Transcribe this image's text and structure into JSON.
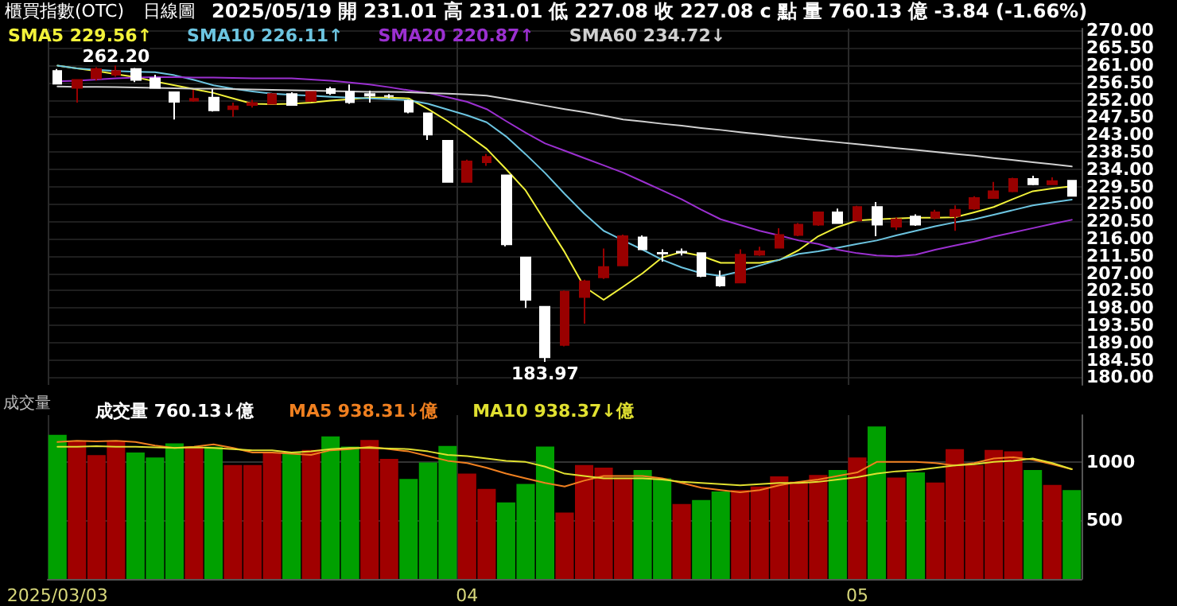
{
  "chart_data": [
    {
      "type": "candlestick",
      "title": "櫃買指數(OTC)",
      "subtitle": "日線圖",
      "annotations": [
        "2025/05/19",
        "開",
        "231.01",
        "高",
        "231.01",
        "低",
        "227.08",
        "收",
        "227.08",
        "c",
        "點",
        "量",
        "760.13",
        "億",
        "-3.84 (-1.66%)",
        {
          "text": "262.20",
          "y": 262.2
        },
        {
          "text": "183.97",
          "y": 183.97
        }
      ],
      "categories": [
        "2025/03/03",
        null,
        null,
        null,
        null,
        null,
        null,
        null,
        null,
        null,
        null,
        null,
        null,
        null,
        null,
        null,
        null,
        null,
        null,
        null,
        null,
        "04",
        null,
        null,
        null,
        null,
        null,
        null,
        null,
        null,
        null,
        null,
        null,
        null,
        null,
        null,
        null,
        null,
        null,
        null,
        null,
        "05",
        null,
        null,
        null,
        null,
        null,
        null,
        null,
        null,
        null,
        null,
        null
      ],
      "colors": [
        "#ffffff",
        "#990000",
        "#990000",
        "#990000",
        "#ffffff",
        "#ffffff",
        "#ffffff",
        "#990000",
        "#ffffff",
        "#990000",
        "#990000",
        "#990000",
        "#ffffff",
        "#990000",
        "#ffffff",
        "#ffffff",
        "#ffffff",
        "#ffffff",
        "#ffffff",
        "#ffffff",
        "#ffffff",
        "#990000",
        "#990000",
        "#ffffff",
        "#ffffff",
        "#ffffff",
        "#990000",
        "#990000",
        "#990000",
        "#990000",
        "#ffffff",
        "#ffffff",
        "#ffffff",
        "#ffffff",
        "#ffffff",
        "#990000",
        "#990000",
        "#990000",
        "#990000",
        "#990000",
        "#ffffff",
        "#990000",
        "#ffffff",
        "#990000",
        "#ffffff",
        "#990000",
        "#990000",
        "#990000",
        "#990000",
        "#990000",
        "#ffffff",
        "#990000",
        "#ffffff"
      ],
      "ohlc": [
        [
          259.5,
          260.0,
          256.0,
          256.2
        ],
        [
          255.1,
          257.4,
          251.3,
          257.2
        ],
        [
          257.6,
          260.5,
          257.0,
          260.0
        ],
        [
          258.5,
          262.2,
          258.0,
          259.5
        ],
        [
          260.0,
          260.3,
          256.6,
          257.2
        ],
        [
          257.6,
          258.5,
          255.0,
          255.1
        ],
        [
          254.0,
          254.2,
          246.9,
          251.5
        ],
        [
          251.8,
          254.6,
          251.5,
          252.3
        ],
        [
          252.6,
          254.8,
          249.0,
          249.3
        ],
        [
          249.6,
          251.3,
          247.6,
          250.3
        ],
        [
          250.7,
          252.0,
          250.0,
          251.2
        ],
        [
          251.0,
          253.8,
          250.8,
          253.5
        ],
        [
          253.5,
          254.0,
          250.5,
          250.7
        ],
        [
          251.7,
          254.1,
          251.7,
          254.1
        ],
        [
          254.8,
          255.4,
          253.3,
          253.8
        ],
        [
          254.1,
          256.0,
          251.0,
          251.4
        ],
        [
          253.5,
          254.4,
          251.3,
          253.1
        ],
        [
          253.0,
          253.5,
          252.5,
          253.0
        ],
        [
          251.7,
          252.0,
          248.5,
          248.9
        ],
        [
          248.5,
          248.7,
          241.6,
          243.0
        ],
        [
          241.4,
          241.5,
          230.5,
          230.7
        ],
        [
          230.7,
          236.5,
          230.5,
          236.0
        ],
        [
          235.8,
          238.0,
          234.9,
          237.2
        ],
        [
          232.4,
          232.5,
          214.0,
          214.5
        ],
        [
          211.1,
          211.2,
          198.0,
          200.1
        ],
        [
          198.3,
          198.5,
          183.97,
          185.2
        ],
        [
          188.4,
          202.5,
          188.0,
          202.2
        ],
        [
          200.8,
          205.3,
          193.9,
          204.9
        ],
        [
          205.9,
          213.4,
          205.5,
          208.6
        ],
        [
          209.0,
          217.0,
          208.8,
          216.6
        ],
        [
          216.3,
          216.8,
          213.0,
          213.2
        ],
        [
          212.3,
          213.2,
          210.0,
          212.1
        ],
        [
          212.6,
          213.4,
          211.6,
          212.4
        ],
        [
          212.2,
          212.4,
          206.0,
          206.3
        ],
        [
          206.0,
          207.7,
          203.5,
          203.8
        ],
        [
          204.6,
          213.2,
          204.4,
          211.8
        ],
        [
          211.8,
          213.9,
          211.5,
          212.7
        ],
        [
          213.6,
          218.7,
          213.4,
          216.9
        ],
        [
          216.9,
          220.0,
          216.6,
          219.6
        ],
        [
          219.6,
          223.0,
          219.3,
          222.8
        ],
        [
          222.8,
          223.8,
          219.8,
          220.0
        ],
        [
          220.7,
          224.5,
          220.5,
          224.2
        ],
        [
          224.2,
          225.5,
          216.6,
          219.6
        ],
        [
          219.1,
          221.5,
          218.2,
          221.0
        ],
        [
          221.7,
          222.3,
          219.3,
          219.6
        ],
        [
          221.4,
          223.5,
          221.0,
          222.8
        ],
        [
          221.8,
          224.6,
          218.0,
          223.5
        ],
        [
          223.8,
          227.0,
          223.5,
          226.5
        ],
        [
          226.5,
          230.7,
          226.3,
          228.3
        ],
        [
          228.3,
          231.8,
          228.0,
          231.5
        ],
        [
          231.5,
          232.3,
          229.8,
          230.1
        ],
        [
          230.1,
          231.9,
          229.9,
          230.92
        ],
        [
          231.01,
          231.01,
          227.08,
          227.08
        ]
      ],
      "series": [
        {
          "type": "line",
          "name": "SMA5 229.56↑",
          "color": "#f2f23a",
          "values": [
            260.9,
            260.2,
            259.5,
            258.7,
            257.9,
            256.8,
            255.8,
            254.8,
            253.8,
            252.4,
            251.0,
            250.9,
            251.0,
            251.3,
            251.8,
            252.2,
            252.6,
            252.6,
            252.4,
            249.6,
            246.5,
            243.0,
            239.3,
            234.0,
            228.5,
            220.5,
            212.5,
            203.5,
            200.1,
            203.5,
            207.0,
            211.1,
            212.5,
            211.5,
            209.7,
            209.7,
            209.7,
            210.4,
            213.0,
            216.6,
            219.0,
            220.7,
            221.0,
            221.2,
            221.4,
            221.4,
            221.5,
            222.8,
            224.2,
            226.3,
            228.3,
            229.0,
            229.56
          ]
        },
        {
          "type": "line",
          "name": "SMA10 226.11↑",
          "color": "#6cc4e0",
          "values": [
            260.9,
            260.2,
            259.8,
            259.5,
            259.3,
            259.2,
            258.4,
            257.2,
            255.8,
            254.9,
            254.2,
            253.6,
            253.3,
            253.1,
            252.8,
            252.6,
            252.4,
            252.2,
            251.9,
            251.0,
            249.5,
            248.0,
            246.2,
            242.5,
            237.9,
            233.0,
            227.6,
            222.5,
            218.0,
            215.5,
            213.1,
            210.5,
            208.5,
            207.0,
            206.3,
            207.5,
            209.0,
            210.5,
            212.0,
            212.7,
            213.6,
            214.6,
            215.5,
            216.8,
            218.0,
            219.2,
            220.2,
            221.0,
            222.2,
            223.4,
            224.6,
            225.4,
            226.11
          ]
        },
        {
          "type": "line",
          "name": "SMA20 220.87↑",
          "color": "#9b30d0",
          "values": [
            256.8,
            257.0,
            257.3,
            257.6,
            257.8,
            257.9,
            257.9,
            257.8,
            257.8,
            257.7,
            257.6,
            257.6,
            257.6,
            257.3,
            257.0,
            256.5,
            256.0,
            255.3,
            254.5,
            253.8,
            252.7,
            251.5,
            249.6,
            246.5,
            243.5,
            240.7,
            238.8,
            236.9,
            235.0,
            233.1,
            230.8,
            228.5,
            226.2,
            223.5,
            221.0,
            219.5,
            218.0,
            216.8,
            215.5,
            214.6,
            213.1,
            212.2,
            211.6,
            211.4,
            211.8,
            213.1,
            214.2,
            215.2,
            216.5,
            217.6,
            218.7,
            219.8,
            220.87
          ]
        },
        {
          "type": "line",
          "name": "SMA60 234.72↓",
          "color": "#d0d0d0",
          "values": [
            255.5,
            255.4,
            255.4,
            255.3,
            255.2,
            255.1,
            255.0,
            254.9,
            254.9,
            254.8,
            254.7,
            254.6,
            254.5,
            254.4,
            254.3,
            254.2,
            254.1,
            254.1,
            254.0,
            253.8,
            253.6,
            253.4,
            253.1,
            252.3,
            251.4,
            250.5,
            249.6,
            248.8,
            247.9,
            246.9,
            246.4,
            245.8,
            245.3,
            244.7,
            244.2,
            243.6,
            243.1,
            242.5,
            242.0,
            241.5,
            241.0,
            240.5,
            240.0,
            239.5,
            239.0,
            238.5,
            238.0,
            237.5,
            236.9,
            236.4,
            235.8,
            235.3,
            234.72
          ]
        }
      ],
      "ylim": [
        178,
        270.5
      ],
      "yticks": [
        {
          "value": 180,
          "label": "180.00"
        },
        {
          "value": 184.5,
          "label": "184.50"
        },
        {
          "value": 189,
          "label": "189.00"
        },
        {
          "value": 193.5,
          "label": "193.50"
        },
        {
          "value": 198,
          "label": "198.00"
        },
        {
          "value": 202.5,
          "label": "202.50"
        },
        {
          "value": 207,
          "label": "207.00"
        },
        {
          "value": 211.5,
          "label": "211.50"
        },
        {
          "value": 216,
          "label": "216.00"
        },
        {
          "value": 220.5,
          "label": "220.50"
        },
        {
          "value": 225,
          "label": "225.00"
        },
        {
          "value": 229.5,
          "label": "229.50"
        },
        {
          "value": 234,
          "label": "234.00"
        },
        {
          "value": 238.5,
          "label": "238.50"
        },
        {
          "value": 243,
          "label": "243.00"
        },
        {
          "value": 247.5,
          "label": "247.50"
        },
        {
          "value": 252,
          "label": "252.00"
        },
        {
          "value": 256.5,
          "label": "256.50"
        },
        {
          "value": 261,
          "label": "261.00"
        },
        {
          "value": 265.5,
          "label": "265.50"
        },
        {
          "value": 270,
          "label": "270.00"
        }
      ],
      "grid": true,
      "legend": "top left",
      "tick_labels": "y"
    },
    {
      "type": "bar",
      "title": "成交量",
      "categories": [
        "2025/03/03",
        null,
        null,
        null,
        null,
        null,
        null,
        null,
        null,
        null,
        null,
        null,
        null,
        null,
        null,
        null,
        null,
        null,
        null,
        null,
        null,
        "04",
        null,
        null,
        null,
        null,
        null,
        null,
        null,
        null,
        null,
        null,
        null,
        null,
        null,
        null,
        null,
        null,
        null,
        null,
        null,
        "05",
        null,
        null,
        null,
        null,
        null,
        null,
        null,
        null,
        null,
        null,
        null
      ],
      "series": [
        {
          "type": "bar",
          "name": "成交量 760.13↓億",
          "values": [
            1231,
            1179,
            1059,
            1179,
            1081,
            1038,
            1158,
            1132,
            1132,
            974,
            974,
            1081,
            1081,
            1102,
            1218,
            1132,
            1187,
            1026,
            854,
            995,
            1136,
            901,
            769,
            654,
            812,
            1132,
            568,
            974,
            952,
            867,
            931,
            859,
            641,
            674,
            747,
            760,
            790,
            876,
            833,
            888,
            931,
            1038,
            1303,
            867,
            910,
            824,
            1110,
            974,
            1102,
            1090,
            931,
            803,
            760.13
          ],
          "colors": [
            "#00a000",
            "#a00000",
            "#a00000",
            "#a00000",
            "#00a000",
            "#00a000",
            "#00a000",
            "#a00000",
            "#00a000",
            "#a00000",
            "#a00000",
            "#a00000",
            "#00a000",
            "#a00000",
            "#00a000",
            "#00a000",
            "#a00000",
            "#a00000",
            "#00a000",
            "#00a000",
            "#00a000",
            "#a00000",
            "#a00000",
            "#00a000",
            "#00a000",
            "#00a000",
            "#a00000",
            "#a00000",
            "#a00000",
            "#a00000",
            "#00a000",
            "#00a000",
            "#a00000",
            "#00a000",
            "#00a000",
            "#a00000",
            "#a00000",
            "#a00000",
            "#a00000",
            "#a00000",
            "#00a000",
            "#a00000",
            "#00a000",
            "#a00000",
            "#00a000",
            "#a00000",
            "#a00000",
            "#a00000",
            "#a00000",
            "#a00000",
            "#00a000",
            "#a00000",
            "#00a000"
          ]
        },
        {
          "type": "line",
          "name": "MA5 938.31↓億",
          "color": "#f08020",
          "values": [
            1170,
            1180,
            1175,
            1180,
            1170,
            1140,
            1120,
            1130,
            1150,
            1120,
            1080,
            1080,
            1070,
            1060,
            1100,
            1110,
            1130,
            1110,
            1090,
            1050,
            1010,
            990,
            950,
            900,
            860,
            820,
            790,
            840,
            880,
            880,
            880,
            860,
            820,
            780,
            760,
            740,
            760,
            800,
            830,
            850,
            880,
            910,
            1000,
            1000,
            1000,
            990,
            970,
            990,
            1030,
            1040,
            1020,
            980,
            938.31
          ]
        },
        {
          "type": "line",
          "name": "MA10 938.37↓億",
          "color": "#e0e030",
          "values": [
            1130,
            1130,
            1135,
            1130,
            1130,
            1125,
            1120,
            1125,
            1120,
            1110,
            1100,
            1100,
            1080,
            1090,
            1110,
            1120,
            1120,
            1115,
            1110,
            1090,
            1060,
            1050,
            1030,
            1010,
            1000,
            960,
            900,
            880,
            860,
            860,
            860,
            850,
            830,
            820,
            810,
            800,
            810,
            820,
            820,
            830,
            850,
            870,
            900,
            920,
            930,
            950,
            970,
            980,
            1000,
            1010,
            1030,
            990,
            938.37
          ]
        }
      ],
      "ylim": [
        0,
        1400
      ],
      "yticks": [
        500,
        1000
      ],
      "grid": true,
      "legend": "top left"
    }
  ]
}
